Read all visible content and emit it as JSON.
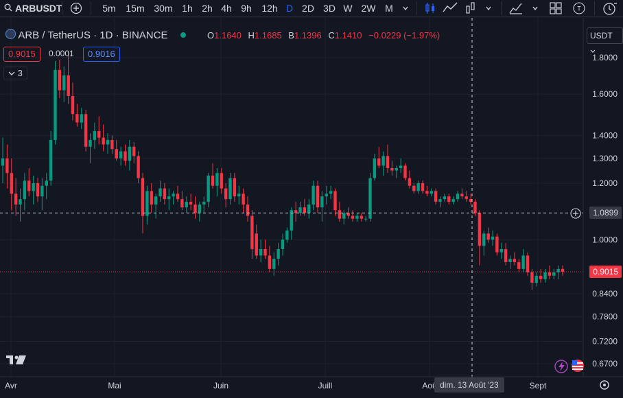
{
  "toolbar": {
    "symbol": "ARBUSDT",
    "intervals": [
      "5m",
      "15m",
      "30m",
      "1h",
      "2h",
      "4h",
      "9h",
      "12h",
      "D",
      "2D",
      "3D",
      "W",
      "2W",
      "M"
    ],
    "active_interval": "D",
    "icons": [
      "plus-icon",
      "chevron-down-icon",
      "candles-icon",
      "line-chart-icon",
      "bar-style-icon",
      "chevron-down-icon",
      "indicators-icon",
      "chevron-down-icon",
      "layouts-icon",
      "text-icon",
      "alert-icon"
    ]
  },
  "legend": {
    "pair": "ARB / TetherUS · 1D · BINANCE",
    "open_label": "O",
    "open": "1.1640",
    "high_label": "H",
    "high": "1.1685",
    "low_label": "B",
    "low": "1.1396",
    "close_label": "C",
    "close": "1.1410",
    "change": "−0.0229 (−1.97%)"
  },
  "order": {
    "sell": "0.9015",
    "spread": "0.0001",
    "buy": "0.9016"
  },
  "indicators_count": "3",
  "currency": "USDT",
  "price_axis": {
    "ticks": [
      "1.8000",
      "1.6000",
      "1.4000",
      "1.3000",
      "1.2000",
      "1.0000",
      "0.8400",
      "0.7800",
      "0.7200",
      "0.6700"
    ],
    "crosshair_price": "1.0899",
    "last_price": "0.9015"
  },
  "time_axis": {
    "labels": [
      "Avr",
      "Mai",
      "Juin",
      "Juill",
      "Aoû",
      "Sept"
    ],
    "crosshair_date": "dim. 13 Août '23"
  },
  "colors": {
    "up": "#089981",
    "down": "#f23645",
    "background": "#131722",
    "accent": "#2962ff"
  },
  "chart_data": {
    "type": "candlestick",
    "scale": "log",
    "ylim": [
      0.64,
      1.88
    ],
    "x": "daily candles from early April to early September 2023",
    "candles_ohlc": [
      [
        1.27,
        1.39,
        1.2,
        1.3
      ],
      [
        1.3,
        1.36,
        1.18,
        1.24
      ],
      [
        1.24,
        1.3,
        1.1,
        1.16
      ],
      [
        1.16,
        1.22,
        1.08,
        1.12
      ],
      [
        1.12,
        1.18,
        1.06,
        1.14
      ],
      [
        1.14,
        1.24,
        1.1,
        1.21
      ],
      [
        1.21,
        1.26,
        1.15,
        1.17
      ],
      [
        1.17,
        1.23,
        1.12,
        1.2
      ],
      [
        1.2,
        1.22,
        1.13,
        1.15
      ],
      [
        1.15,
        1.22,
        1.1,
        1.19
      ],
      [
        1.19,
        1.24,
        1.14,
        1.21
      ],
      [
        1.21,
        1.42,
        1.19,
        1.38
      ],
      [
        1.38,
        1.78,
        1.36,
        1.73
      ],
      [
        1.73,
        1.79,
        1.58,
        1.62
      ],
      [
        1.62,
        1.75,
        1.56,
        1.7
      ],
      [
        1.7,
        1.84,
        1.55,
        1.59
      ],
      [
        1.59,
        1.66,
        1.47,
        1.5
      ],
      [
        1.5,
        1.55,
        1.44,
        1.46
      ],
      [
        1.46,
        1.53,
        1.43,
        1.5
      ],
      [
        1.5,
        1.52,
        1.33,
        1.35
      ],
      [
        1.35,
        1.41,
        1.28,
        1.38
      ],
      [
        1.38,
        1.46,
        1.34,
        1.42
      ],
      [
        1.42,
        1.49,
        1.36,
        1.39
      ],
      [
        1.39,
        1.45,
        1.33,
        1.36
      ],
      [
        1.36,
        1.41,
        1.32,
        1.38
      ],
      [
        1.38,
        1.4,
        1.32,
        1.34
      ],
      [
        1.34,
        1.38,
        1.29,
        1.3
      ],
      [
        1.3,
        1.35,
        1.27,
        1.33
      ],
      [
        1.33,
        1.36,
        1.27,
        1.29
      ],
      [
        1.29,
        1.38,
        1.25,
        1.35
      ],
      [
        1.35,
        1.37,
        1.28,
        1.31
      ],
      [
        1.31,
        1.33,
        1.2,
        1.22
      ],
      [
        1.22,
        1.24,
        1.02,
        1.08
      ],
      [
        1.08,
        1.19,
        1.05,
        1.17
      ],
      [
        1.17,
        1.2,
        1.09,
        1.12
      ],
      [
        1.12,
        1.16,
        1.07,
        1.15
      ],
      [
        1.15,
        1.21,
        1.13,
        1.18
      ],
      [
        1.18,
        1.2,
        1.12,
        1.14
      ],
      [
        1.14,
        1.18,
        1.1,
        1.15
      ],
      [
        1.15,
        1.17,
        1.12,
        1.16
      ],
      [
        1.16,
        1.19,
        1.13,
        1.14
      ],
      [
        1.14,
        1.17,
        1.1,
        1.11
      ],
      [
        1.11,
        1.15,
        1.09,
        1.13
      ],
      [
        1.13,
        1.16,
        1.1,
        1.12
      ],
      [
        1.12,
        1.15,
        1.07,
        1.09
      ],
      [
        1.09,
        1.13,
        1.06,
        1.12
      ],
      [
        1.12,
        1.15,
        1.09,
        1.13
      ],
      [
        1.13,
        1.24,
        1.11,
        1.23
      ],
      [
        1.23,
        1.28,
        1.18,
        1.19
      ],
      [
        1.19,
        1.26,
        1.15,
        1.24
      ],
      [
        1.24,
        1.26,
        1.16,
        1.18
      ],
      [
        1.18,
        1.2,
        1.11,
        1.14
      ],
      [
        1.14,
        1.24,
        1.12,
        1.22
      ],
      [
        1.22,
        1.24,
        1.13,
        1.15
      ],
      [
        1.15,
        1.19,
        1.12,
        1.16
      ],
      [
        1.16,
        1.18,
        1.09,
        1.12
      ],
      [
        1.12,
        1.15,
        1.06,
        1.08
      ],
      [
        1.08,
        1.1,
        0.94,
        0.97
      ],
      [
        1.02,
        1.05,
        0.94,
        0.95
      ],
      [
        0.95,
        1.0,
        0.93,
        0.97
      ],
      [
        0.97,
        1.0,
        0.94,
        0.95
      ],
      [
        0.95,
        0.98,
        0.9,
        0.91
      ],
      [
        0.91,
        0.96,
        0.89,
        0.94
      ],
      [
        0.94,
        0.99,
        0.92,
        0.97
      ],
      [
        0.97,
        1.02,
        0.95,
        1.0
      ],
      [
        1.0,
        1.04,
        0.99,
        1.03
      ],
      [
        1.03,
        1.11,
        1.0,
        1.1
      ],
      [
        1.1,
        1.13,
        1.06,
        1.09
      ],
      [
        1.09,
        1.13,
        1.08,
        1.11
      ],
      [
        1.11,
        1.14,
        1.08,
        1.09
      ],
      [
        1.09,
        1.14,
        1.07,
        1.12
      ],
      [
        1.12,
        1.21,
        1.1,
        1.19
      ],
      [
        1.19,
        1.21,
        1.09,
        1.11
      ],
      [
        1.11,
        1.17,
        1.06,
        1.15
      ],
      [
        1.15,
        1.19,
        1.12,
        1.16
      ],
      [
        1.16,
        1.19,
        1.14,
        1.17
      ],
      [
        1.17,
        1.18,
        1.08,
        1.1
      ],
      [
        1.1,
        1.13,
        1.06,
        1.07
      ],
      [
        1.07,
        1.1,
        1.05,
        1.09
      ],
      [
        1.09,
        1.11,
        1.07,
        1.08
      ],
      [
        1.08,
        1.1,
        1.06,
        1.07
      ],
      [
        1.07,
        1.09,
        1.06,
        1.08
      ],
      [
        1.08,
        1.09,
        1.06,
        1.07
      ],
      [
        1.07,
        1.08,
        1.06,
        1.07
      ],
      [
        1.07,
        1.24,
        1.06,
        1.22
      ],
      [
        1.22,
        1.32,
        1.21,
        1.3
      ],
      [
        1.3,
        1.35,
        1.26,
        1.27
      ],
      [
        1.27,
        1.33,
        1.23,
        1.31
      ],
      [
        1.31,
        1.36,
        1.24,
        1.26
      ],
      [
        1.26,
        1.29,
        1.23,
        1.25
      ],
      [
        1.25,
        1.27,
        1.22,
        1.26
      ],
      [
        1.26,
        1.3,
        1.24,
        1.27
      ],
      [
        1.27,
        1.28,
        1.21,
        1.22
      ],
      [
        1.22,
        1.25,
        1.18,
        1.19
      ],
      [
        1.19,
        1.2,
        1.16,
        1.17
      ],
      [
        1.17,
        1.21,
        1.16,
        1.2
      ],
      [
        1.2,
        1.21,
        1.16,
        1.17
      ],
      [
        1.17,
        1.19,
        1.15,
        1.16
      ],
      [
        1.16,
        1.18,
        1.15,
        1.17
      ],
      [
        1.17,
        1.18,
        1.12,
        1.13
      ],
      [
        1.13,
        1.15,
        1.11,
        1.14
      ],
      [
        1.14,
        1.16,
        1.13,
        1.15
      ],
      [
        1.15,
        1.16,
        1.12,
        1.13
      ],
      [
        1.13,
        1.15,
        1.12,
        1.14
      ],
      [
        1.14,
        1.17,
        1.13,
        1.16
      ],
      [
        1.16,
        1.18,
        1.14,
        1.15
      ],
      [
        1.15,
        1.17,
        1.13,
        1.14
      ],
      [
        1.14,
        1.16,
        1.12,
        1.13
      ],
      [
        1.13,
        1.14,
        1.08,
        1.09
      ],
      [
        1.09,
        1.1,
        0.92,
        0.98
      ],
      [
        0.98,
        1.03,
        0.95,
        1.02
      ],
      [
        1.02,
        1.04,
        0.99,
        1.0
      ],
      [
        1.0,
        1.03,
        0.98,
        1.01
      ],
      [
        1.01,
        1.02,
        0.95,
        0.96
      ],
      [
        0.96,
        0.99,
        0.94,
        0.97
      ],
      [
        0.97,
        0.99,
        0.92,
        0.93
      ],
      [
        0.93,
        0.95,
        0.91,
        0.94
      ],
      [
        0.94,
        0.96,
        0.92,
        0.93
      ],
      [
        0.93,
        0.94,
        0.9,
        0.91
      ],
      [
        0.91,
        0.97,
        0.9,
        0.95
      ],
      [
        0.95,
        0.96,
        0.89,
        0.9
      ],
      [
        0.9,
        0.91,
        0.85,
        0.87
      ],
      [
        0.87,
        0.9,
        0.86,
        0.89
      ],
      [
        0.89,
        0.91,
        0.87,
        0.88
      ],
      [
        0.88,
        0.91,
        0.87,
        0.9
      ],
      [
        0.9,
        0.92,
        0.88,
        0.89
      ],
      [
        0.89,
        0.91,
        0.88,
        0.9
      ],
      [
        0.9,
        0.92,
        0.88,
        0.91
      ],
      [
        0.91,
        0.92,
        0.89,
        0.9015
      ]
    ]
  }
}
